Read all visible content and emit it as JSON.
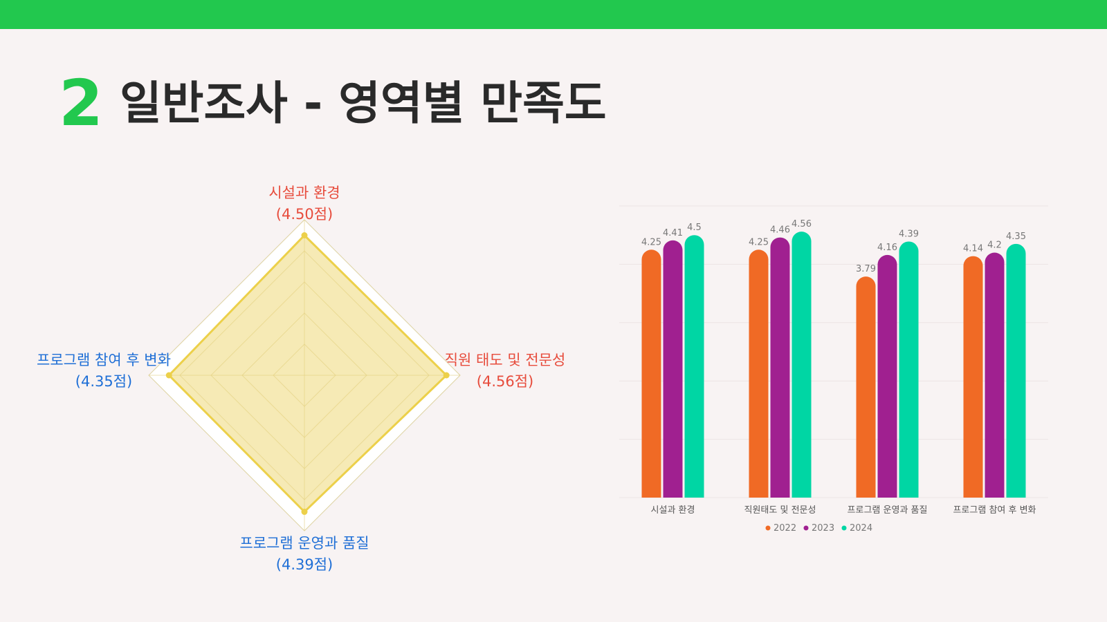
{
  "header": {
    "number": "2",
    "title": "일반조사 - 영역별 만족도"
  },
  "colors": {
    "accent": "#22c84e",
    "radar_fill": "#f5e6a8",
    "radar_line": "#ecd04a",
    "top_label": "#e74c3c",
    "side_label_blue": "#1f6fd6"
  },
  "chart_data": [
    {
      "type": "radar",
      "axes": [
        {
          "name": "시설과 환경",
          "value_label": "(4.50점)",
          "value": 4.5,
          "color": "#e74c3c"
        },
        {
          "name": "직원 태도 및 전문성",
          "value_label": "(4.56점)",
          "value": 4.56,
          "color": "#e74c3c"
        },
        {
          "name": "프로그램 운영과 품질",
          "value_label": "(4.39점)",
          "value": 4.39,
          "color": "#1f6fd6"
        },
        {
          "name": "프로그램 참여 후 변화",
          "value_label": "(4.35점)",
          "value": 4.35,
          "color": "#1f6fd6"
        }
      ],
      "range": [
        0,
        5
      ]
    },
    {
      "type": "bar",
      "categories": [
        "시설과 환경",
        "직원태도 및 전문성",
        "프로그램 운영과 품질",
        "프로그램 참여 후 변화"
      ],
      "series": [
        {
          "name": "2022",
          "values": [
            4.25,
            4.25,
            3.79,
            4.14
          ],
          "color": "#f06a25"
        },
        {
          "name": "2023",
          "values": [
            4.41,
            4.46,
            4.16,
            4.2
          ],
          "color": "#a02090"
        },
        {
          "name": "2024",
          "values": [
            4.5,
            4.56,
            4.39,
            4.35
          ],
          "color": "#00d6a4"
        }
      ],
      "ylim": [
        0,
        5
      ],
      "grid": true,
      "legend": "bottom",
      "value_labels": [
        [
          "4.25",
          "4.25",
          "3.79",
          "4.14"
        ],
        [
          "4.41",
          "4.46",
          "4.16",
          "4.2"
        ],
        [
          "4.5",
          "4.56",
          "4.39",
          "4.35"
        ]
      ]
    }
  ]
}
